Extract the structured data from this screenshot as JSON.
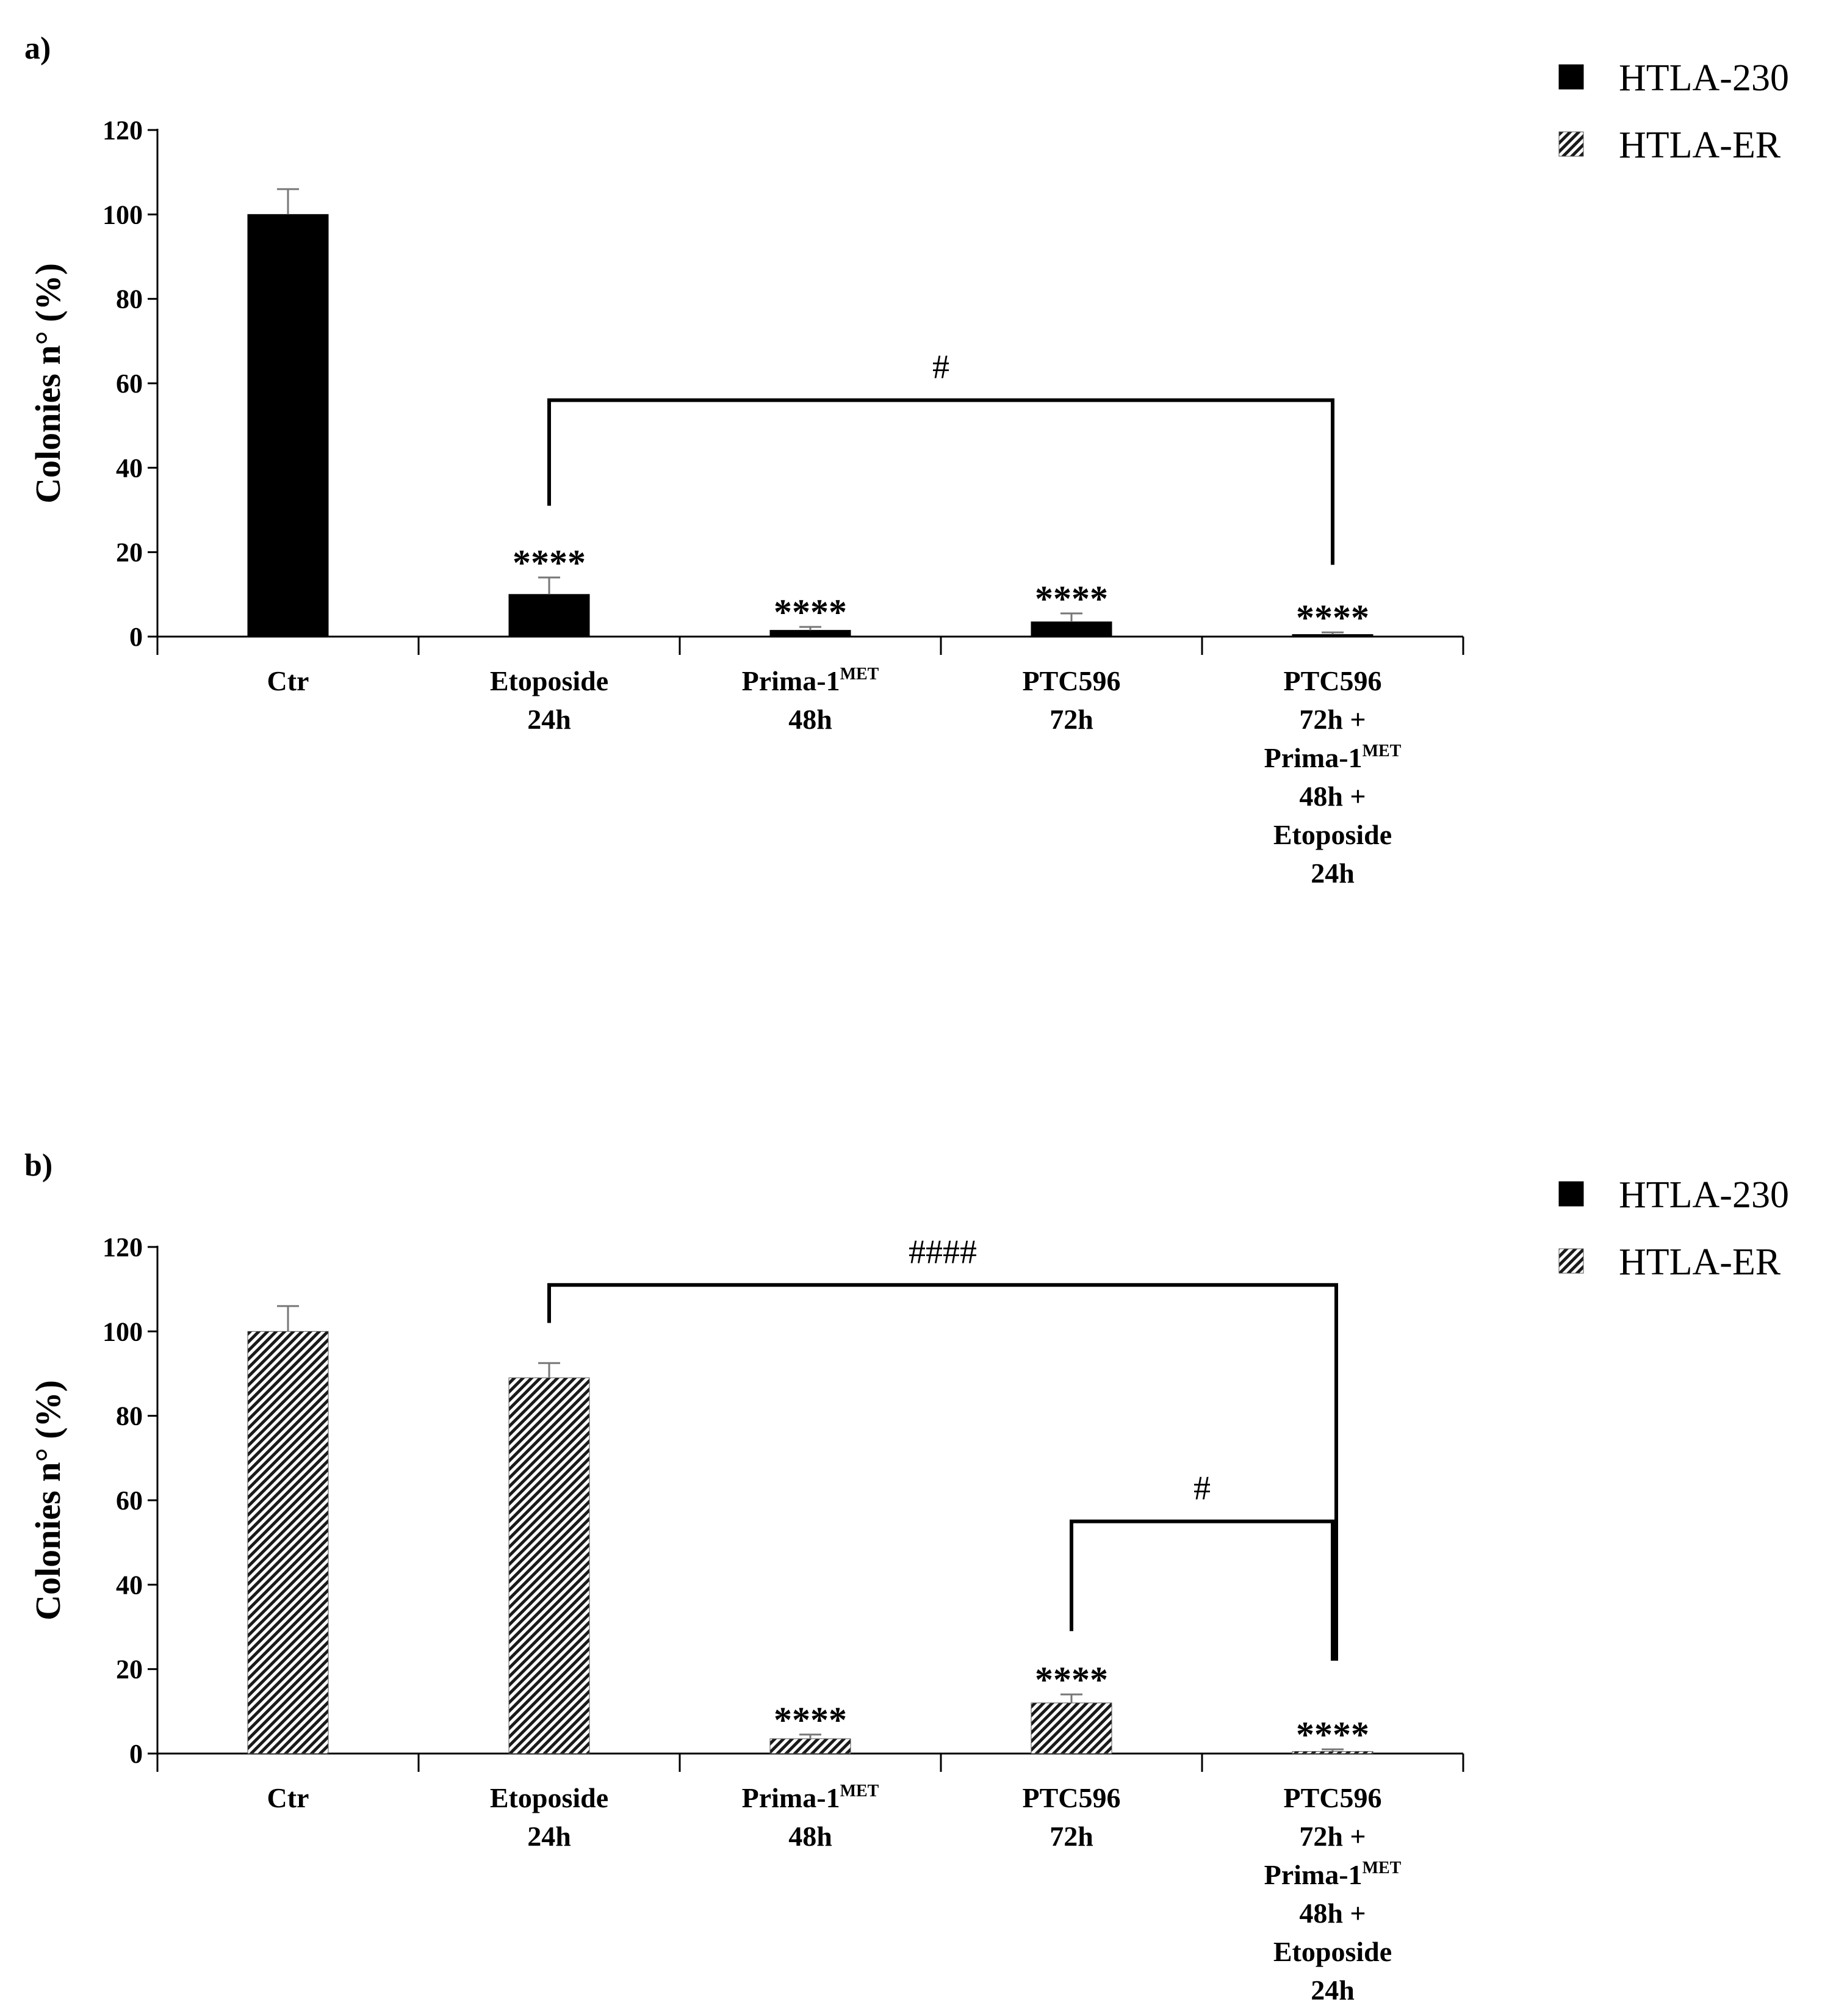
{
  "chart_data": [
    {
      "panel": "a)",
      "type": "bar",
      "ylabel": "Colonies n° (%)",
      "ylim": [
        0,
        120
      ],
      "yticks": [
        "0",
        "20",
        "40",
        "60",
        "80",
        "100",
        "120"
      ],
      "categories": [
        {
          "lines": [
            "Ctr"
          ]
        },
        {
          "lines": [
            "Etoposide",
            "24h"
          ]
        },
        {
          "lines": [
            "Prima-1|MET",
            "48h"
          ]
        },
        {
          "lines": [
            "PTC596",
            "72h"
          ]
        },
        {
          "lines": [
            "PTC596",
            "72h +",
            "Prima-1|MET",
            "48h +",
            "Etoposide",
            "24h"
          ]
        }
      ],
      "series": [
        {
          "name": "HTLA-230",
          "pattern": "solid",
          "values": [
            100,
            10,
            1.5,
            3.5,
            0.5
          ],
          "errors": [
            6,
            4,
            0.8,
            2,
            0.5
          ]
        }
      ],
      "significance": [
        "",
        "****",
        "****",
        "****",
        "****"
      ],
      "brackets": [
        {
          "from": 1,
          "to": 4,
          "label": "#",
          "level": 56,
          "from_end": 31,
          "to_end": 17
        }
      ],
      "legend": [
        "HTLA-230",
        "HTLA-ER"
      ]
    },
    {
      "panel": "b)",
      "type": "bar",
      "ylabel": "Colonies n° (%)",
      "ylim": [
        0,
        120
      ],
      "yticks": [
        "0",
        "20",
        "40",
        "60",
        "80",
        "100",
        "120"
      ],
      "categories": [
        {
          "lines": [
            "Ctr"
          ]
        },
        {
          "lines": [
            "Etoposide",
            "24h"
          ]
        },
        {
          "lines": [
            "Prima-1|MET",
            "48h"
          ]
        },
        {
          "lines": [
            "PTC596",
            "72h"
          ]
        },
        {
          "lines": [
            "PTC596",
            "72h +",
            "Prima-1|MET",
            "48h +",
            "Etoposide",
            "24h"
          ]
        }
      ],
      "series": [
        {
          "name": "HTLA-ER",
          "pattern": "hatched",
          "values": [
            100,
            89,
            3.5,
            12,
            0.5
          ],
          "errors": [
            6,
            3.5,
            1,
            2,
            0.5
          ]
        }
      ],
      "significance": [
        "",
        "",
        "****",
        "****",
        "****"
      ],
      "brackets": [
        {
          "from": 1,
          "to": 4,
          "label": "####",
          "level": 111,
          "from_end": 102,
          "to_end": 22
        },
        {
          "from": 3,
          "to": 4,
          "label": "#",
          "level": 55,
          "from_end": 29,
          "to_end": 22
        }
      ],
      "legend": [
        "HTLA-230",
        "HTLA-ER"
      ]
    }
  ]
}
